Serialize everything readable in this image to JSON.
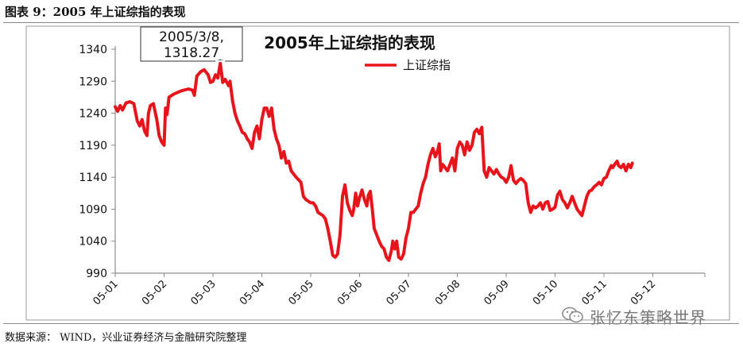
{
  "figure_title": "图表 9：2005 年上证综指的表现",
  "source_note": "数据来源：  WIND，兴业证券经济与金融研究院整理",
  "watermark_text": "张忆东策略世界",
  "watermark_icon": "wechat-icon",
  "colors": {
    "series": "#e8141b",
    "axis": "#8c8c8c",
    "text": "#111111"
  },
  "chart_data": {
    "type": "line",
    "title": "2005年上证综指的表现",
    "xlabel": "",
    "ylabel": "",
    "ylim": [
      990,
      1340
    ],
    "yticks": [
      1340,
      1290,
      1240,
      1190,
      1140,
      1090,
      1040,
      990
    ],
    "ytick_labels": [
      "1340",
      "1290",
      "1240",
      "1190",
      "1140",
      "1090",
      "1040",
      "990"
    ],
    "xtick_labels": [
      "05-01",
      "05-02",
      "05-03",
      "05-04",
      "05-05",
      "05-06",
      "05-07",
      "05-08",
      "05-09",
      "05-10",
      "05-11",
      "05-12"
    ],
    "legend": {
      "position": "top-center",
      "label": "上证综指"
    },
    "grid": false,
    "annotation": {
      "text_line1": "2005/3/8,",
      "text_line2": "1318.27",
      "x": 2.15,
      "y": 1318.27
    },
    "series": [
      {
        "name": "上证综指",
        "points": [
          [
            0.0,
            1250
          ],
          [
            0.05,
            1243
          ],
          [
            0.1,
            1252
          ],
          [
            0.15,
            1245
          ],
          [
            0.22,
            1256
          ],
          [
            0.3,
            1258
          ],
          [
            0.38,
            1255
          ],
          [
            0.45,
            1228
          ],
          [
            0.5,
            1220
          ],
          [
            0.55,
            1230
          ],
          [
            0.6,
            1212
          ],
          [
            0.65,
            1205
          ],
          [
            0.68,
            1240
          ],
          [
            0.72,
            1252
          ],
          [
            0.78,
            1255
          ],
          [
            0.85,
            1230
          ],
          [
            0.9,
            1205
          ],
          [
            0.95,
            1195
          ],
          [
            1.0,
            1190
          ],
          [
            1.03,
            1248
          ],
          [
            1.06,
            1238
          ],
          [
            1.1,
            1265
          ],
          [
            1.2,
            1270
          ],
          [
            1.35,
            1275
          ],
          [
            1.5,
            1278
          ],
          [
            1.58,
            1276
          ],
          [
            1.62,
            1268
          ],
          [
            1.67,
            1298
          ],
          [
            1.75,
            1305
          ],
          [
            1.82,
            1308
          ],
          [
            1.9,
            1300
          ],
          [
            1.95,
            1288
          ],
          [
            2.0,
            1290
          ],
          [
            2.05,
            1300
          ],
          [
            2.1,
            1295
          ],
          [
            2.15,
            1318
          ],
          [
            2.2,
            1288
          ],
          [
            2.25,
            1293
          ],
          [
            2.32,
            1283
          ],
          [
            2.35,
            1290
          ],
          [
            2.4,
            1260
          ],
          [
            2.45,
            1240
          ],
          [
            2.5,
            1228
          ],
          [
            2.55,
            1220
          ],
          [
            2.6,
            1210
          ],
          [
            2.65,
            1208
          ],
          [
            2.7,
            1200
          ],
          [
            2.75,
            1195
          ],
          [
            2.8,
            1185
          ],
          [
            2.85,
            1210
          ],
          [
            2.9,
            1220
          ],
          [
            2.95,
            1200
          ],
          [
            3.0,
            1230
          ],
          [
            3.05,
            1248
          ],
          [
            3.1,
            1248
          ],
          [
            3.15,
            1235
          ],
          [
            3.2,
            1248
          ],
          [
            3.25,
            1215
          ],
          [
            3.3,
            1200
          ],
          [
            3.35,
            1190
          ],
          [
            3.4,
            1170
          ],
          [
            3.45,
            1180
          ],
          [
            3.5,
            1162
          ],
          [
            3.55,
            1165
          ],
          [
            3.6,
            1150
          ],
          [
            3.7,
            1140
          ],
          [
            3.8,
            1132
          ],
          [
            3.85,
            1110
          ],
          [
            3.9,
            1105
          ],
          [
            4.0,
            1100
          ],
          [
            4.05,
            1100
          ],
          [
            4.1,
            1095
          ],
          [
            4.15,
            1085
          ],
          [
            4.25,
            1080
          ],
          [
            4.3,
            1075
          ],
          [
            4.35,
            1060
          ],
          [
            4.4,
            1040
          ],
          [
            4.45,
            1018
          ],
          [
            4.5,
            1015
          ],
          [
            4.55,
            1020
          ],
          [
            4.6,
            1050
          ],
          [
            4.65,
            1110
          ],
          [
            4.7,
            1128
          ],
          [
            4.75,
            1100
          ],
          [
            4.8,
            1088
          ],
          [
            4.85,
            1080
          ],
          [
            4.88,
            1090
          ],
          [
            4.92,
            1115
          ],
          [
            4.96,
            1095
          ],
          [
            5.0,
            1108
          ],
          [
            5.05,
            1120
          ],
          [
            5.1,
            1105
          ],
          [
            5.15,
            1095
          ],
          [
            5.18,
            1112
          ],
          [
            5.22,
            1118
          ],
          [
            5.26,
            1090
          ],
          [
            5.3,
            1060
          ],
          [
            5.35,
            1050
          ],
          [
            5.4,
            1040
          ],
          [
            5.45,
            1032
          ],
          [
            5.5,
            1028
          ],
          [
            5.55,
            1015
          ],
          [
            5.6,
            1010
          ],
          [
            5.65,
            1025
          ],
          [
            5.68,
            1040
          ],
          [
            5.72,
            1028
          ],
          [
            5.76,
            1040
          ],
          [
            5.8,
            1015
          ],
          [
            5.85,
            1012
          ],
          [
            5.9,
            1020
          ],
          [
            5.95,
            1045
          ],
          [
            6.0,
            1060
          ],
          [
            6.05,
            1085
          ],
          [
            6.1,
            1085
          ],
          [
            6.15,
            1090
          ],
          [
            6.2,
            1095
          ],
          [
            6.25,
            1115
          ],
          [
            6.3,
            1130
          ],
          [
            6.35,
            1140
          ],
          [
            6.4,
            1160
          ],
          [
            6.45,
            1175
          ],
          [
            6.5,
            1185
          ],
          [
            6.55,
            1172
          ],
          [
            6.6,
            1182
          ],
          [
            6.63,
            1192
          ],
          [
            6.66,
            1150
          ],
          [
            6.7,
            1160
          ],
          [
            6.75,
            1155
          ],
          [
            6.8,
            1150
          ],
          [
            6.85,
            1160
          ],
          [
            6.9,
            1170
          ],
          [
            6.95,
            1150
          ],
          [
            7.0,
            1185
          ],
          [
            7.05,
            1195
          ],
          [
            7.1,
            1190
          ],
          [
            7.15,
            1175
          ],
          [
            7.2,
            1195
          ],
          [
            7.25,
            1182
          ],
          [
            7.3,
            1190
          ],
          [
            7.35,
            1210
          ],
          [
            7.4,
            1215
          ],
          [
            7.45,
            1208
          ],
          [
            7.5,
            1218
          ],
          [
            7.55,
            1150
          ],
          [
            7.6,
            1140
          ],
          [
            7.65,
            1155
          ],
          [
            7.7,
            1150
          ],
          [
            7.75,
            1145
          ],
          [
            7.8,
            1152
          ],
          [
            7.85,
            1145
          ],
          [
            7.9,
            1140
          ],
          [
            7.95,
            1138
          ],
          [
            8.0,
            1132
          ],
          [
            8.05,
            1140
          ],
          [
            8.1,
            1158
          ],
          [
            8.15,
            1135
          ],
          [
            8.2,
            1130
          ],
          [
            8.25,
            1135
          ],
          [
            8.3,
            1138
          ],
          [
            8.35,
            1135
          ],
          [
            8.4,
            1130
          ],
          [
            8.45,
            1100
          ],
          [
            8.5,
            1085
          ],
          [
            8.55,
            1095
          ],
          [
            8.6,
            1092
          ],
          [
            8.65,
            1095
          ],
          [
            8.7,
            1100
          ],
          [
            8.75,
            1090
          ],
          [
            8.8,
            1100
          ],
          [
            8.85,
            1102
          ],
          [
            8.9,
            1088
          ],
          [
            8.95,
            1090
          ],
          [
            9.0,
            1093
          ],
          [
            9.05,
            1112
          ],
          [
            9.1,
            1118
          ],
          [
            9.15,
            1105
          ],
          [
            9.2,
            1100
          ],
          [
            9.25,
            1092
          ],
          [
            9.3,
            1100
          ],
          [
            9.35,
            1110
          ],
          [
            9.4,
            1100
          ],
          [
            9.45,
            1090
          ],
          [
            9.5,
            1085
          ],
          [
            9.55,
            1080
          ],
          [
            9.6,
            1095
          ],
          [
            9.65,
            1110
          ],
          [
            9.7,
            1118
          ],
          [
            9.75,
            1120
          ],
          [
            9.8,
            1125
          ],
          [
            9.85,
            1128
          ],
          [
            9.9,
            1132
          ],
          [
            9.95,
            1128
          ],
          [
            10.0,
            1138
          ],
          [
            10.05,
            1140
          ],
          [
            10.1,
            1150
          ],
          [
            10.15,
            1158
          ],
          [
            10.18,
            1155
          ],
          [
            10.22,
            1160
          ],
          [
            10.27,
            1165
          ],
          [
            10.3,
            1158
          ],
          [
            10.35,
            1155
          ],
          [
            10.4,
            1160
          ],
          [
            10.45,
            1150
          ],
          [
            10.5,
            1160
          ],
          [
            10.55,
            1155
          ],
          [
            10.58,
            1162
          ]
        ]
      }
    ]
  }
}
